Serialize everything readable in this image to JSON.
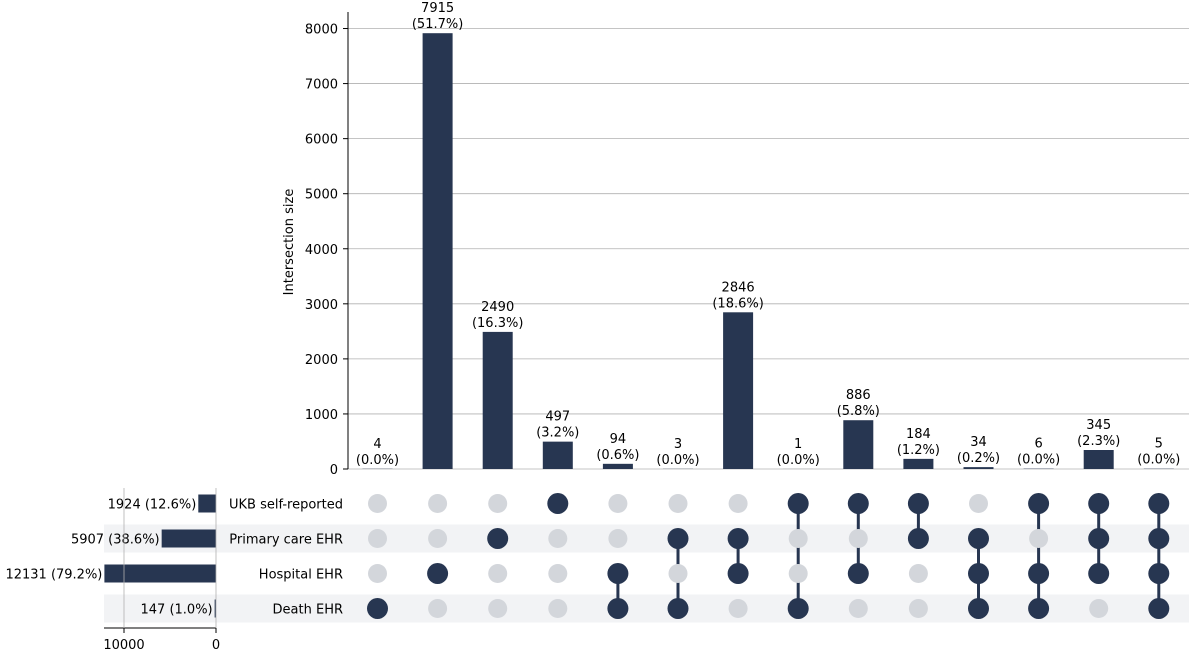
{
  "chart_data": {
    "type": "upset",
    "ylabel": "Intersection size",
    "ylim": [
      0,
      8300
    ],
    "yticks": [
      0,
      1000,
      2000,
      3000,
      4000,
      5000,
      6000,
      7000,
      8000
    ],
    "grid": true,
    "colors": {
      "bar": "#273651",
      "dot_inactive": "#d3d6db",
      "stripe": "#f2f3f5",
      "grid": "#b0b0b0"
    },
    "sets": [
      {
        "name": "UKB self-reported",
        "size": 1924,
        "label": "1924 (12.6%)"
      },
      {
        "name": "Primary care EHR",
        "size": 5907,
        "label": "5907 (38.6%)"
      },
      {
        "name": "Hospital EHR",
        "size": 12131,
        "label": "12131 (79.2%)"
      },
      {
        "name": "Death EHR",
        "size": 147,
        "label": "147 (1.0%)"
      }
    ],
    "set_size_axis": {
      "ticks": [
        10000,
        0
      ],
      "max": 12500
    },
    "intersections": [
      {
        "value": 4,
        "count_label": "4",
        "pct_label": "(0.0%)",
        "members": [
          3
        ]
      },
      {
        "value": 7915,
        "count_label": "7915",
        "pct_label": "(51.7%)",
        "members": [
          2
        ]
      },
      {
        "value": 2490,
        "count_label": "2490",
        "pct_label": "(16.3%)",
        "members": [
          1
        ]
      },
      {
        "value": 497,
        "count_label": "497",
        "pct_label": "(3.2%)",
        "members": [
          0
        ]
      },
      {
        "value": 94,
        "count_label": "94",
        "pct_label": "(0.6%)",
        "members": [
          2,
          3
        ]
      },
      {
        "value": 3,
        "count_label": "3",
        "pct_label": "(0.0%)",
        "members": [
          1,
          3
        ]
      },
      {
        "value": 2846,
        "count_label": "2846",
        "pct_label": "(18.6%)",
        "members": [
          1,
          2
        ]
      },
      {
        "value": 1,
        "count_label": "1",
        "pct_label": "(0.0%)",
        "members": [
          0,
          3
        ]
      },
      {
        "value": 886,
        "count_label": "886",
        "pct_label": "(5.8%)",
        "members": [
          0,
          2
        ]
      },
      {
        "value": 184,
        "count_label": "184",
        "pct_label": "(1.2%)",
        "members": [
          0,
          1
        ]
      },
      {
        "value": 34,
        "count_label": "34",
        "pct_label": "(0.2%)",
        "members": [
          1,
          2,
          3
        ]
      },
      {
        "value": 6,
        "count_label": "6",
        "pct_label": "(0.0%)",
        "members": [
          0,
          2,
          3
        ]
      },
      {
        "value": 345,
        "count_label": "345",
        "pct_label": "(2.3%)",
        "members": [
          0,
          1,
          2
        ]
      },
      {
        "value": 5,
        "count_label": "5",
        "pct_label": "(0.0%)",
        "members": [
          0,
          1,
          2,
          3
        ]
      }
    ]
  }
}
